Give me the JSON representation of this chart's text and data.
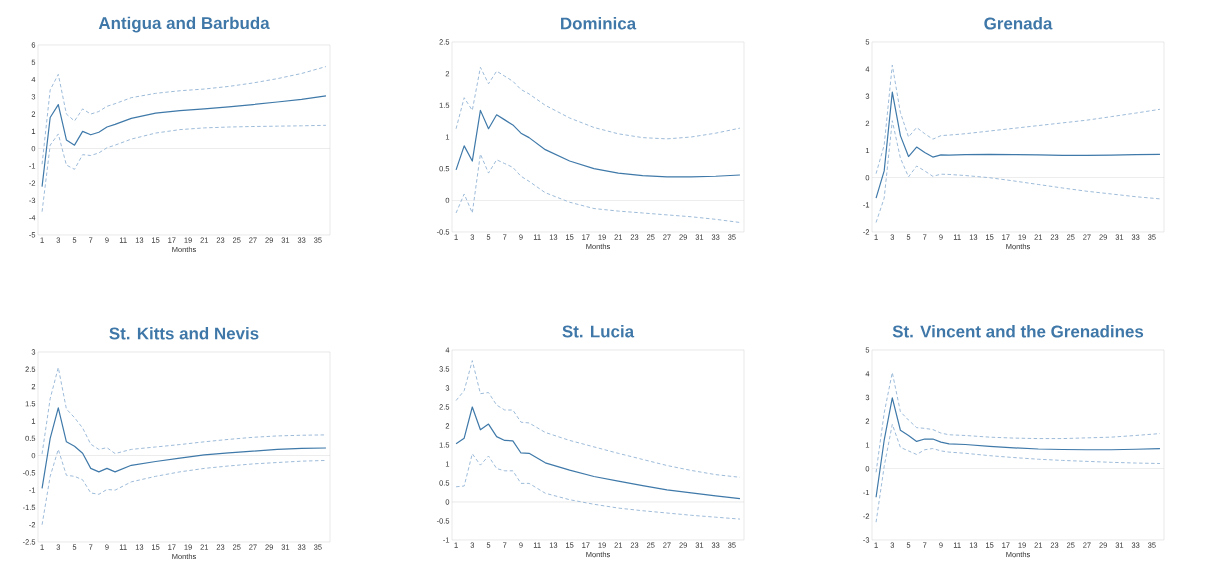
{
  "chart_data": [
    {
      "type": "line",
      "title": "Antigua and Barbuda",
      "xlabel": "Months",
      "x": [
        1,
        2,
        3,
        4,
        5,
        6,
        7,
        8,
        9,
        10,
        12,
        15,
        18,
        21,
        24,
        27,
        30,
        33,
        36
      ],
      "xlim": [
        0.5,
        36.5
      ],
      "xticks": [
        1,
        3,
        5,
        7,
        9,
        11,
        13,
        15,
        17,
        19,
        21,
        23,
        25,
        27,
        29,
        31,
        33,
        35
      ],
      "ylim": [
        -5,
        6
      ],
      "yticks": [
        -5,
        -4,
        -3,
        -2,
        -1,
        0,
        1,
        2,
        3,
        4,
        5,
        6
      ],
      "ref_lines": [
        {
          "axis": "y",
          "value": 0,
          "color": "#c8c8c8"
        }
      ],
      "series": [
        {
          "color": "#3f79a9",
          "line_style": "solid",
          "values": [
            -2.2,
            1.8,
            2.55,
            0.5,
            0.2,
            1.0,
            0.8,
            0.95,
            1.25,
            1.4,
            1.75,
            2.05,
            2.2,
            2.3,
            2.42,
            2.55,
            2.7,
            2.85,
            3.05
          ]
        },
        {
          "color": "#9dbbd9",
          "line_style": "dashed",
          "values": [
            -0.9,
            3.4,
            4.3,
            2.0,
            1.6,
            2.3,
            2.0,
            2.15,
            2.45,
            2.6,
            2.95,
            3.2,
            3.35,
            3.45,
            3.6,
            3.8,
            4.05,
            4.35,
            4.75
          ]
        },
        {
          "color": "#9dbbd9",
          "line_style": "dashed",
          "values": [
            -3.65,
            0.2,
            0.85,
            -0.95,
            -1.2,
            -0.35,
            -0.4,
            -0.25,
            0.05,
            0.2,
            0.55,
            0.9,
            1.1,
            1.2,
            1.25,
            1.28,
            1.3,
            1.32,
            1.35
          ]
        }
      ]
    },
    {
      "type": "line",
      "title": "Dominica",
      "xlabel": "Months",
      "x": [
        1,
        2,
        3,
        4,
        5,
        6,
        7,
        8,
        9,
        10,
        12,
        15,
        18,
        21,
        24,
        27,
        30,
        33,
        36
      ],
      "xlim": [
        0.5,
        36.5
      ],
      "xticks": [
        1,
        3,
        5,
        7,
        9,
        11,
        13,
        15,
        17,
        19,
        21,
        23,
        25,
        27,
        29,
        31,
        33,
        35
      ],
      "ylim": [
        -0.5,
        2.5
      ],
      "yticks": [
        -0.5,
        0,
        0.5,
        1,
        1.5,
        2,
        2.5
      ],
      "ref_lines": [
        {
          "axis": "y",
          "value": 0,
          "color": "#c8c8c8"
        }
      ],
      "series": [
        {
          "color": "#3f79a9",
          "line_style": "solid",
          "values": [
            0.48,
            0.86,
            0.62,
            1.42,
            1.13,
            1.35,
            1.27,
            1.19,
            1.06,
            0.99,
            0.8,
            0.62,
            0.5,
            0.43,
            0.39,
            0.37,
            0.37,
            0.38,
            0.4
          ]
        },
        {
          "color": "#9dbbd9",
          "line_style": "dashed",
          "values": [
            1.13,
            1.62,
            1.42,
            2.1,
            1.84,
            2.04,
            1.96,
            1.88,
            1.75,
            1.68,
            1.5,
            1.3,
            1.15,
            1.05,
            0.99,
            0.97,
            1.0,
            1.06,
            1.14
          ]
        },
        {
          "color": "#9dbbd9",
          "line_style": "dashed",
          "values": [
            -0.2,
            0.1,
            -0.2,
            0.73,
            0.43,
            0.64,
            0.58,
            0.52,
            0.38,
            0.3,
            0.12,
            -0.03,
            -0.13,
            -0.17,
            -0.2,
            -0.23,
            -0.26,
            -0.3,
            -0.35
          ]
        }
      ]
    },
    {
      "type": "line",
      "title": "Grenada",
      "xlabel": "Months",
      "x": [
        1,
        2,
        3,
        4,
        5,
        6,
        7,
        8,
        9,
        10,
        12,
        15,
        18,
        21,
        24,
        27,
        30,
        33,
        36
      ],
      "xlim": [
        0.5,
        36.5
      ],
      "xticks": [
        1,
        3,
        5,
        7,
        9,
        11,
        13,
        15,
        17,
        19,
        21,
        23,
        25,
        27,
        29,
        31,
        33,
        35
      ],
      "ylim": [
        -2,
        5
      ],
      "yticks": [
        -2,
        -1,
        0,
        1,
        2,
        3,
        4,
        5
      ],
      "ref_lines": [
        {
          "axis": "y",
          "value": 0,
          "color": "#c8c8c8"
        }
      ],
      "series": [
        {
          "color": "#3f79a9",
          "line_style": "solid",
          "values": [
            -0.75,
            0.25,
            3.15,
            1.55,
            0.78,
            1.13,
            0.93,
            0.76,
            0.84,
            0.83,
            0.85,
            0.86,
            0.85,
            0.84,
            0.82,
            0.82,
            0.83,
            0.85,
            0.86
          ]
        },
        {
          "color": "#9dbbd9",
          "line_style": "dashed",
          "values": [
            0.15,
            1.2,
            4.15,
            2.4,
            1.5,
            1.85,
            1.62,
            1.42,
            1.55,
            1.57,
            1.62,
            1.72,
            1.82,
            1.92,
            2.02,
            2.12,
            2.25,
            2.38,
            2.52
          ]
        },
        {
          "color": "#9dbbd9",
          "line_style": "dashed",
          "values": [
            -1.65,
            -0.75,
            2.1,
            0.72,
            0.03,
            0.43,
            0.25,
            0.05,
            0.13,
            0.12,
            0.08,
            0.0,
            -0.12,
            -0.25,
            -0.38,
            -0.5,
            -0.6,
            -0.7,
            -0.78
          ]
        }
      ]
    },
    {
      "type": "line",
      "title": "St. Kitts and Nevis",
      "xlabel": "Months",
      "x": [
        1,
        2,
        3,
        4,
        5,
        6,
        7,
        8,
        9,
        10,
        12,
        15,
        18,
        21,
        24,
        27,
        30,
        33,
        36
      ],
      "xlim": [
        0.5,
        36.5
      ],
      "xticks": [
        1,
        3,
        5,
        7,
        9,
        11,
        13,
        15,
        17,
        19,
        21,
        23,
        25,
        27,
        29,
        31,
        33,
        35
      ],
      "ylim": [
        -2.5,
        3
      ],
      "yticks": [
        -2.5,
        -2,
        -1.5,
        -1,
        -0.5,
        0,
        0.5,
        1,
        1.5,
        2,
        2.5,
        3
      ],
      "ref_lines": [
        {
          "axis": "y",
          "value": 0,
          "color": "#c8c8c8"
        }
      ],
      "series": [
        {
          "color": "#3f79a9",
          "line_style": "solid",
          "values": [
            -0.95,
            0.5,
            1.38,
            0.4,
            0.27,
            0.07,
            -0.37,
            -0.47,
            -0.37,
            -0.47,
            -0.28,
            -0.17,
            -0.07,
            0.02,
            0.08,
            0.13,
            0.18,
            0.21,
            0.22
          ]
        },
        {
          "color": "#9dbbd9",
          "line_style": "dashed",
          "values": [
            0.05,
            1.65,
            2.55,
            1.35,
            1.1,
            0.8,
            0.33,
            0.18,
            0.23,
            0.06,
            0.18,
            0.25,
            0.32,
            0.4,
            0.47,
            0.53,
            0.57,
            0.59,
            0.6
          ]
        },
        {
          "color": "#9dbbd9",
          "line_style": "dashed",
          "values": [
            -2.0,
            -0.6,
            0.18,
            -0.57,
            -0.6,
            -0.7,
            -1.08,
            -1.12,
            -0.98,
            -1.0,
            -0.76,
            -0.6,
            -0.47,
            -0.37,
            -0.3,
            -0.24,
            -0.2,
            -0.16,
            -0.14
          ]
        }
      ]
    },
    {
      "type": "line",
      "title": "St. Lucia",
      "xlabel": "Months",
      "x": [
        1,
        2,
        3,
        4,
        5,
        6,
        7,
        8,
        9,
        10,
        12,
        15,
        18,
        21,
        24,
        27,
        30,
        33,
        36
      ],
      "xlim": [
        0.5,
        36.5
      ],
      "xticks": [
        1,
        3,
        5,
        7,
        9,
        11,
        13,
        15,
        17,
        19,
        21,
        23,
        25,
        27,
        29,
        31,
        33,
        35
      ],
      "ylim": [
        -1,
        4
      ],
      "yticks": [
        -1,
        -0.5,
        0,
        0.5,
        1,
        1.5,
        2,
        2.5,
        3,
        3.5,
        4
      ],
      "ref_lines": [
        {
          "axis": "y",
          "value": 0,
          "color": "#c8c8c8"
        }
      ],
      "series": [
        {
          "color": "#3f79a9",
          "line_style": "solid",
          "values": [
            1.53,
            1.68,
            2.5,
            1.9,
            2.05,
            1.72,
            1.62,
            1.61,
            1.29,
            1.28,
            1.03,
            0.84,
            0.67,
            0.55,
            0.43,
            0.32,
            0.24,
            0.16,
            0.09
          ]
        },
        {
          "color": "#9dbbd9",
          "line_style": "dashed",
          "values": [
            2.67,
            2.93,
            3.72,
            2.85,
            2.88,
            2.55,
            2.42,
            2.42,
            2.1,
            2.08,
            1.83,
            1.62,
            1.45,
            1.28,
            1.12,
            0.96,
            0.83,
            0.72,
            0.65
          ]
        },
        {
          "color": "#9dbbd9",
          "line_style": "dashed",
          "values": [
            0.4,
            0.42,
            1.27,
            0.97,
            1.21,
            0.88,
            0.82,
            0.82,
            0.49,
            0.49,
            0.23,
            0.06,
            -0.06,
            -0.16,
            -0.23,
            -0.29,
            -0.35,
            -0.4,
            -0.45
          ]
        }
      ]
    },
    {
      "type": "line",
      "title": "St. Vincent and the Grenadines",
      "xlabel": "Months",
      "x": [
        1,
        2,
        3,
        4,
        5,
        6,
        7,
        8,
        9,
        10,
        12,
        15,
        18,
        21,
        24,
        27,
        30,
        33,
        36
      ],
      "xlim": [
        0.5,
        36.5
      ],
      "xticks": [
        1,
        3,
        5,
        7,
        9,
        11,
        13,
        15,
        17,
        19,
        21,
        23,
        25,
        27,
        29,
        31,
        33,
        35
      ],
      "ylim": [
        -3,
        5
      ],
      "yticks": [
        -3,
        -2,
        -1,
        0,
        1,
        2,
        3,
        4,
        5
      ],
      "ref_lines": [
        {
          "axis": "y",
          "value": 0,
          "color": "#c8c8c8"
        }
      ],
      "series": [
        {
          "color": "#3f79a9",
          "line_style": "solid",
          "values": [
            -1.2,
            1.2,
            2.98,
            1.62,
            1.4,
            1.15,
            1.25,
            1.25,
            1.12,
            1.05,
            1.02,
            0.94,
            0.88,
            0.83,
            0.81,
            0.8,
            0.8,
            0.82,
            0.85
          ]
        },
        {
          "color": "#9dbbd9",
          "line_style": "dashed",
          "values": [
            -0.15,
            2.35,
            4.05,
            2.4,
            2.05,
            1.73,
            1.7,
            1.65,
            1.5,
            1.43,
            1.4,
            1.33,
            1.29,
            1.27,
            1.27,
            1.3,
            1.33,
            1.4,
            1.48
          ]
        },
        {
          "color": "#9dbbd9",
          "line_style": "dashed",
          "values": [
            -2.25,
            0.1,
            1.87,
            0.9,
            0.75,
            0.6,
            0.8,
            0.85,
            0.75,
            0.7,
            0.65,
            0.55,
            0.47,
            0.4,
            0.35,
            0.31,
            0.27,
            0.24,
            0.22
          ]
        }
      ]
    }
  ]
}
